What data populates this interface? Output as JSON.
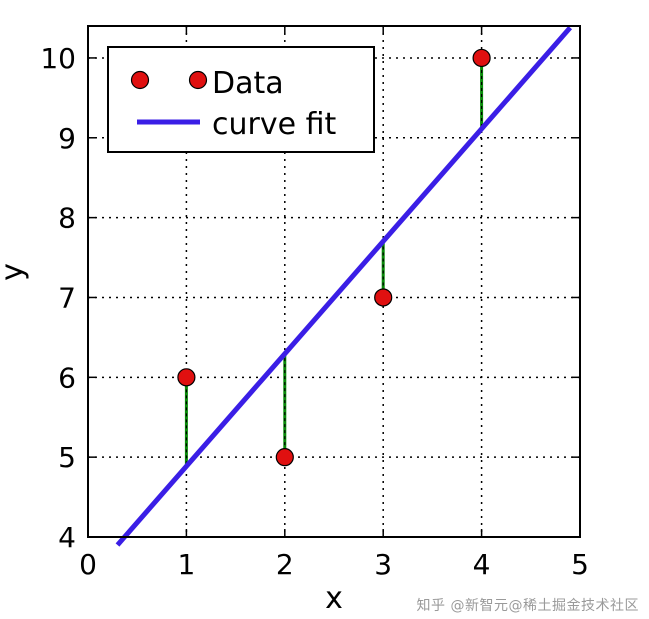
{
  "chart_data": {
    "type": "scatter",
    "xlabel": "x",
    "ylabel": "y",
    "xlim": [
      0,
      5
    ],
    "ylim": [
      4,
      10.4
    ],
    "x_ticks": [
      "0",
      "1",
      "2",
      "3",
      "4",
      "5"
    ],
    "y_ticks": [
      "4",
      "5",
      "6",
      "7",
      "8",
      "9",
      "10"
    ],
    "grid": true,
    "legend_position": "top-left",
    "series": [
      {
        "name": "Data",
        "kind": "points",
        "x": [
          1,
          2,
          3,
          4
        ],
        "y": [
          6,
          5,
          7,
          10
        ],
        "color": "#e01010"
      },
      {
        "name": "curve fit",
        "kind": "line",
        "x": [
          0.3,
          4.9
        ],
        "y": [
          3.9,
          10.38
        ],
        "color": "#3a1ee6"
      }
    ],
    "residuals": {
      "x": [
        1,
        2,
        3,
        4
      ],
      "y_from": [
        6,
        5,
        7,
        10
      ],
      "y_to": [
        4.9,
        6.3,
        7.7,
        9.1
      ],
      "color": "#0a8a0a"
    }
  },
  "watermark": "知乎 @新智元@稀土掘金技术社区"
}
